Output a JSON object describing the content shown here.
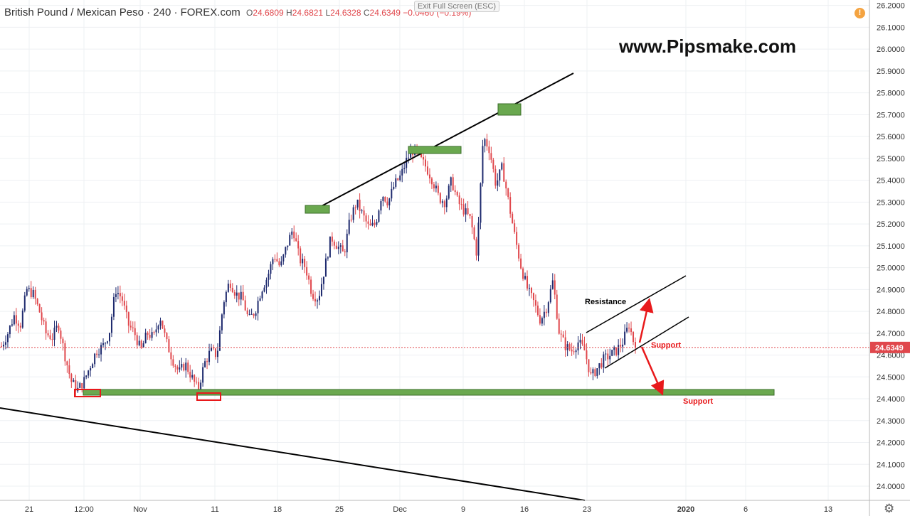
{
  "header": {
    "symbol": "British Pound / Mexican Peso · 240 · FOREX.com",
    "open_label": "O",
    "open": "24.6809",
    "high_label": "H",
    "high": "24.6821",
    "low_label": "L",
    "low": "24.6328",
    "close_label": "C",
    "close": "24.6349",
    "change": "−0.0460 (−0.19%)"
  },
  "exit_fullscreen": "Exit Full Screen (ESC)",
  "watermark": "www.Pipsmake.com",
  "icons": {
    "alert": "alert-icon",
    "settings": "gear-icon"
  },
  "alert_glyph": "!",
  "colors": {
    "up": "#1e2a6e",
    "down": "#e0474c",
    "zone": "#6aa84f",
    "arrow": "#e8191b",
    "price_tag": "#e0474c"
  },
  "chart_data": {
    "type": "candlestick",
    "ylim": [
      23.935,
      26.225
    ],
    "y_ticks": [
      "26.2000",
      "26.1000",
      "26.0000",
      "25.9000",
      "25.8000",
      "25.7000",
      "25.6000",
      "25.5000",
      "25.4000",
      "25.3000",
      "25.2000",
      "25.1000",
      "25.0000",
      "24.9000",
      "24.8000",
      "24.7000",
      "24.6000",
      "24.5000",
      "24.4000",
      "24.3000",
      "24.2000",
      "24.1000",
      "24.0000"
    ],
    "x_ticks": [
      "21",
      "12:00",
      "Nov",
      "11",
      "18",
      "25",
      "Dec",
      "9",
      "16",
      "23",
      "2020",
      "6",
      "13"
    ],
    "last_price": "24.6349",
    "price_path": [
      24.64,
      24.7,
      24.78,
      24.74,
      24.9,
      24.88,
      24.8,
      24.7,
      24.68,
      24.74,
      24.6,
      24.48,
      24.44,
      24.48,
      24.55,
      24.62,
      24.64,
      24.7,
      24.9,
      24.86,
      24.74,
      24.7,
      24.62,
      24.7,
      24.68,
      24.78,
      24.66,
      24.58,
      24.52,
      24.56,
      24.5,
      24.44,
      24.56,
      24.62,
      24.6,
      24.84,
      24.94,
      24.88,
      24.86,
      24.76,
      24.8,
      24.9,
      24.96,
      25.06,
      25.0,
      25.1,
      25.18,
      25.04,
      25.0,
      24.88,
      24.86,
      25.0,
      25.14,
      25.1,
      25.06,
      25.22,
      25.3,
      25.24,
      25.18,
      25.2,
      25.34,
      25.3,
      25.38,
      25.42,
      25.5,
      25.54,
      25.5,
      25.46,
      25.4,
      25.32,
      25.3,
      25.4,
      25.3,
      25.26,
      25.22,
      25.06,
      25.6,
      25.54,
      25.38,
      25.46,
      25.3,
      25.14,
      25.0,
      24.9,
      24.84,
      24.76,
      24.82,
      24.94,
      24.7,
      24.64,
      24.62,
      24.66,
      24.62,
      24.5,
      24.54,
      24.58,
      24.6,
      24.62,
      24.66,
      24.74,
      24.63
    ],
    "annotations": {
      "resistance": "Resistance",
      "support_1": "Support",
      "support_2": "Support"
    }
  }
}
